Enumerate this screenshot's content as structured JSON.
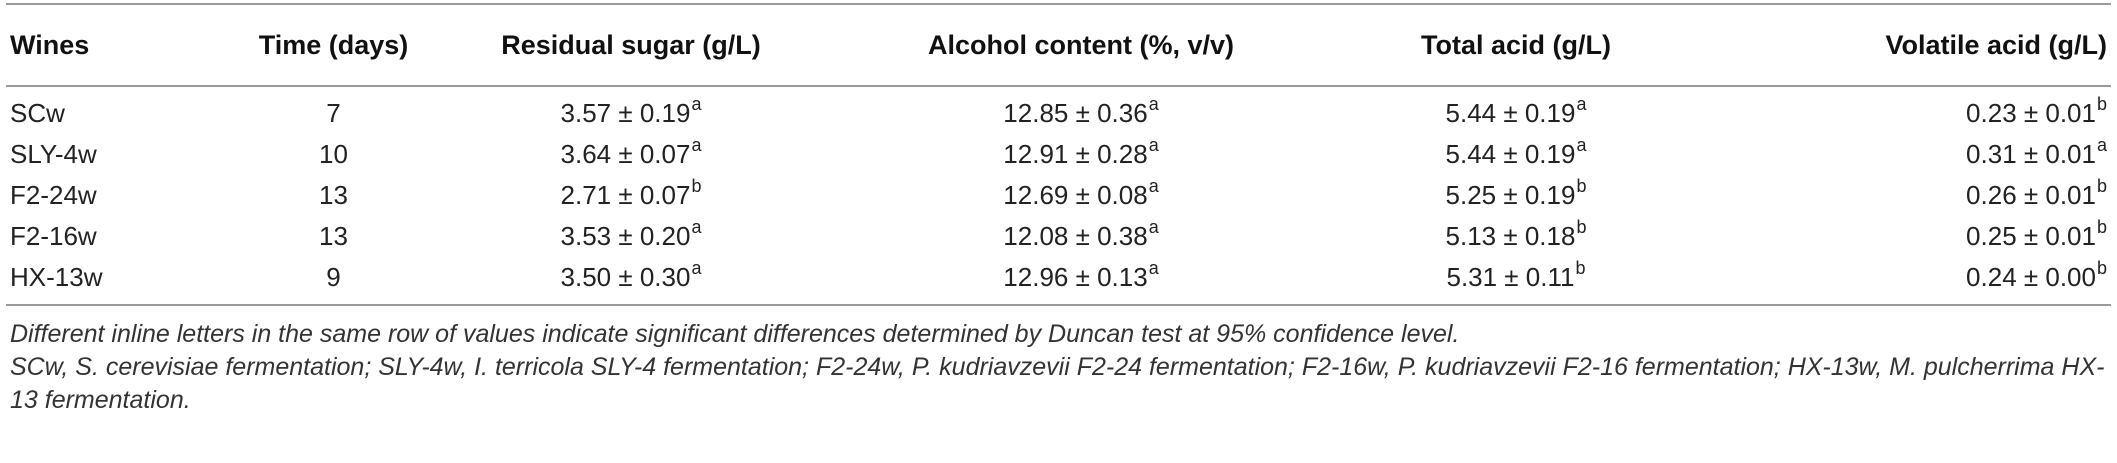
{
  "table": {
    "headers": [
      "Wines",
      "Time (days)",
      "Residual sugar (g/L)",
      "Alcohol content (%, v/v)",
      "Total acid (g/L)",
      "Volatile acid (g/L)"
    ],
    "rows": [
      {
        "wine": "SCw",
        "time": "7",
        "sugar": {
          "value": "3.57 ± 0.19",
          "sig": "a"
        },
        "alcohol": {
          "value": "12.85 ± 0.36",
          "sig": "a"
        },
        "total_acid": {
          "value": "5.44 ± 0.19",
          "sig": "a"
        },
        "volatile_acid": {
          "value": "0.23 ± 0.01",
          "sig": "b"
        }
      },
      {
        "wine": "SLY-4w",
        "time": "10",
        "sugar": {
          "value": "3.64 ± 0.07",
          "sig": "a"
        },
        "alcohol": {
          "value": "12.91 ± 0.28",
          "sig": "a"
        },
        "total_acid": {
          "value": "5.44 ± 0.19",
          "sig": "a"
        },
        "volatile_acid": {
          "value": "0.31 ± 0.01",
          "sig": "a"
        }
      },
      {
        "wine": "F2-24w",
        "time": "13",
        "sugar": {
          "value": "2.71 ± 0.07",
          "sig": "b"
        },
        "alcohol": {
          "value": "12.69 ± 0.08",
          "sig": "a"
        },
        "total_acid": {
          "value": "5.25 ± 0.19",
          "sig": "b"
        },
        "volatile_acid": {
          "value": "0.26 ± 0.01",
          "sig": "b"
        }
      },
      {
        "wine": "F2-16w",
        "time": "13",
        "sugar": {
          "value": "3.53 ± 0.20",
          "sig": "a"
        },
        "alcohol": {
          "value": "12.08 ± 0.38",
          "sig": "a"
        },
        "total_acid": {
          "value": "5.13 ± 0.18",
          "sig": "b"
        },
        "volatile_acid": {
          "value": "0.25 ± 0.01",
          "sig": "b"
        }
      },
      {
        "wine": "HX-13w",
        "time": "9",
        "sugar": {
          "value": "3.50 ± 0.30",
          "sig": "a"
        },
        "alcohol": {
          "value": "12.96 ± 0.13",
          "sig": "a"
        },
        "total_acid": {
          "value": "5.31 ± 0.11",
          "sig": "b"
        },
        "volatile_acid": {
          "value": "0.24 ± 0.00",
          "sig": "b"
        }
      }
    ]
  },
  "notes": {
    "significance": "Different inline letters in the same row of values indicate significant differences determined by Duncan test at 95% confidence level.",
    "abbreviations": "SCw, S. cerevisiae fermentation; SLY-4w, I. terricola SLY-4 fermentation; F2-24w, P. kudriavzevii F2-24 fermentation; F2-16w, P. kudriavzevii F2-16 fermentation; HX-13w, M. pulcherrima HX-13 fermentation."
  }
}
